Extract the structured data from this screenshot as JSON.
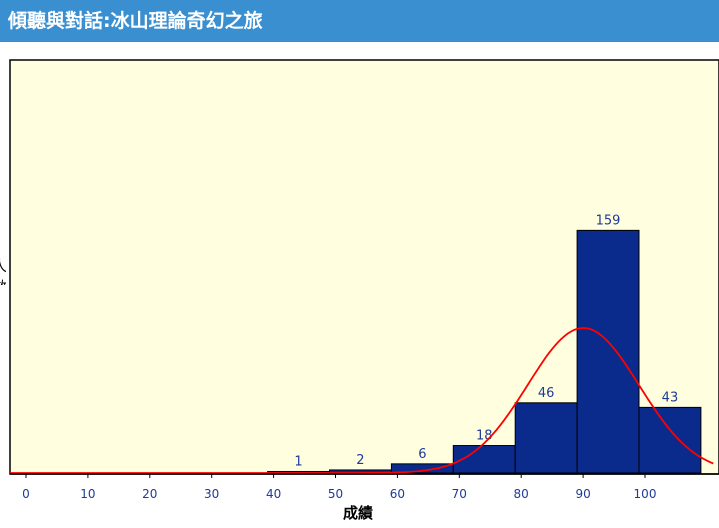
{
  "header": {
    "title": "傾聽與對話:冰山理論奇幻之旅"
  },
  "chart_data": {
    "type": "bar",
    "title": "",
    "xlabel": "成績",
    "ylabel": "人數",
    "xlim": [
      -2,
      110
    ],
    "ylim": [
      0,
      180
    ],
    "xticks": [
      "0",
      "10",
      "20",
      "30",
      "40",
      "50",
      "60",
      "70",
      "80",
      "90",
      "100"
    ],
    "bins": [
      {
        "start": 40,
        "end": 50,
        "value": 1,
        "label": "1"
      },
      {
        "start": 50,
        "end": 60,
        "value": 2,
        "label": "2"
      },
      {
        "start": 60,
        "end": 70,
        "value": 6,
        "label": "6"
      },
      {
        "start": 70,
        "end": 80,
        "value": 18,
        "label": "18"
      },
      {
        "start": 80,
        "end": 90,
        "value": 46,
        "label": "46"
      },
      {
        "start": 90,
        "end": 100,
        "value": 159,
        "label": "159"
      },
      {
        "start": 100,
        "end": 110,
        "value": 43,
        "label": "43"
      }
    ],
    "normal_curve": {
      "mean": 91,
      "sd": 9,
      "peak": 95
    },
    "colors": {
      "plot_background": "#ffffe0",
      "bar_fill": "#0a2a8c",
      "curve": "#ff0000",
      "label": "#1f3a99"
    }
  }
}
